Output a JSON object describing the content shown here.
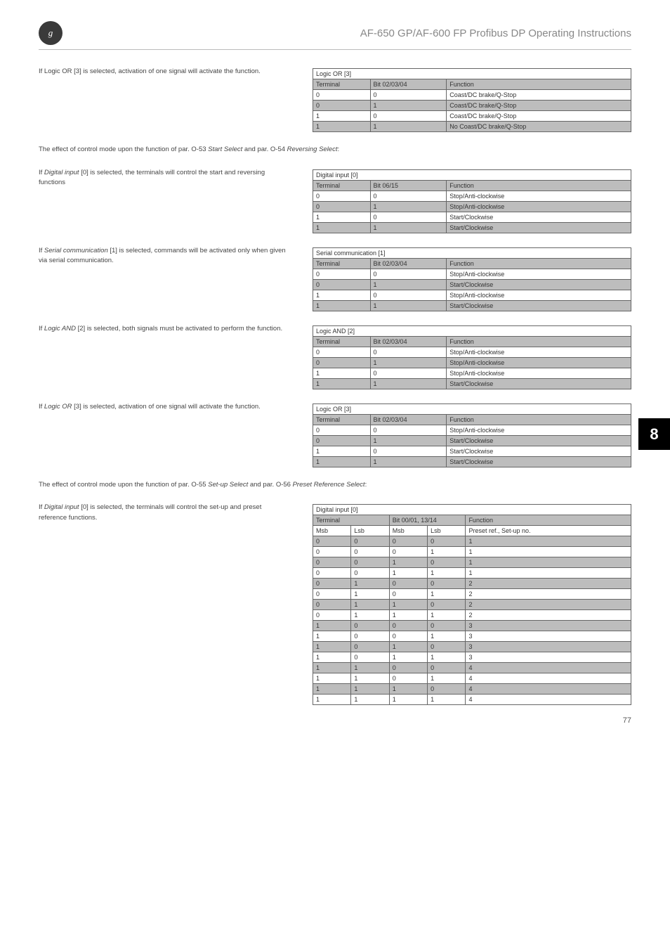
{
  "header": {
    "logo_text": "g",
    "doc_title": "AF-650 GP/AF-600 FP Profibus DP Operating Instructions"
  },
  "side_tab": "8",
  "page_number": "77",
  "sections": [
    {
      "left_html": "If Logic OR [3] is selected, activation of one signal will activate the function.",
      "table": {
        "title_span": 3,
        "title": "Logic OR [3]",
        "head": [
          "Terminal",
          "Bit 02/03/04",
          "Function"
        ],
        "rows": [
          [
            "0",
            "0",
            "Coast/DC brake/Q-Stop"
          ],
          [
            "0",
            "1",
            "Coast/DC brake/Q-Stop"
          ],
          [
            "1",
            "0",
            "Coast/DC brake/Q-Stop"
          ],
          [
            "1",
            "1",
            "No Coast/DC brake/Q-Stop"
          ]
        ]
      }
    },
    {
      "full_html": "The effect of control mode upon the function of par. O-53 <em>Start Select</em> and par. O-54 <em>Reversing Select</em>:"
    },
    {
      "left_html": "If <em>Digital input</em> [0] is selected, the terminals will control the start and reversing functions",
      "table": {
        "title_span": 3,
        "title": "Digital input [0]",
        "head": [
          "Terminal",
          "Bit 06/15",
          "Function"
        ],
        "rows": [
          [
            "0",
            "0",
            "Stop/Anti-clockwise"
          ],
          [
            "0",
            "1",
            "Stop/Anti-clockwise"
          ],
          [
            "1",
            "0",
            "Start/Clockwise"
          ],
          [
            "1",
            "1",
            "Start/Clockwise"
          ]
        ]
      }
    },
    {
      "left_html": "If <em>Serial communication</em> [1] is selected, commands will be activated only when given via serial communication.",
      "table": {
        "title_span": 3,
        "title": "Serial communication [1]",
        "head": [
          "Terminal",
          "Bit 02/03/04",
          "Function"
        ],
        "rows": [
          [
            "0",
            "0",
            "Stop/Anti-clockwise"
          ],
          [
            "0",
            "1",
            "Start/Clockwise"
          ],
          [
            "1",
            "0",
            "Stop/Anti-clockwise"
          ],
          [
            "1",
            "1",
            "Start/Clockwise"
          ]
        ]
      }
    },
    {
      "left_html": "If <em>Logic AND</em> [2] is selected, both signals must be activated to perform the function.",
      "table": {
        "title_span": 3,
        "title": "Logic AND [2]",
        "head": [
          "Terminal",
          "Bit 02/03/04",
          "Function"
        ],
        "rows": [
          [
            "0",
            "0",
            "Stop/Anti-clockwise"
          ],
          [
            "0",
            "1",
            "Stop/Anti-clockwise"
          ],
          [
            "1",
            "0",
            "Stop/Anti-clockwise"
          ],
          [
            "1",
            "1",
            "Start/Clockwise"
          ]
        ]
      }
    },
    {
      "left_html": "If <em>Logic OR</em> [3] is selected, activation of one signal will activate the function.",
      "table": {
        "title_span": 3,
        "title": "Logic OR [3]",
        "head": [
          "Terminal",
          "Bit 02/03/04",
          "Function"
        ],
        "rows": [
          [
            "0",
            "0",
            "Stop/Anti-clockwise"
          ],
          [
            "0",
            "1",
            "Start/Clockwise"
          ],
          [
            "1",
            "0",
            "Start/Clockwise"
          ],
          [
            "1",
            "1",
            "Start/Clockwise"
          ]
        ]
      }
    },
    {
      "full_html": "The effect of control mode upon the function of par. O-55 <em>Set-up Select</em> and par. O-56 <em>Preset Reference Select</em>:"
    },
    {
      "left_html": "If <em>Digital input</em> [0] is selected, the terminals will control the set-up and preset reference functions.",
      "table5": {
        "title": "Digital input [0]",
        "head_group": [
          {
            "label": "Terminal",
            "span": 2
          },
          {
            "label": "Bit 00/01, 13/14",
            "span": 2
          },
          {
            "label": "Function",
            "span": 1
          }
        ],
        "head": [
          "Msb",
          "Lsb",
          "Msb",
          "Lsb",
          "Preset ref., Set-up no."
        ],
        "rows": [
          [
            "0",
            "0",
            "0",
            "0",
            "1"
          ],
          [
            "0",
            "0",
            "0",
            "1",
            "1"
          ],
          [
            "0",
            "0",
            "1",
            "0",
            "1"
          ],
          [
            "0",
            "0",
            "1",
            "1",
            "1"
          ],
          [
            "0",
            "1",
            "0",
            "0",
            "2"
          ],
          [
            "0",
            "1",
            "0",
            "1",
            "2"
          ],
          [
            "0",
            "1",
            "1",
            "0",
            "2"
          ],
          [
            "0",
            "1",
            "1",
            "1",
            "2"
          ],
          [
            "1",
            "0",
            "0",
            "0",
            "3"
          ],
          [
            "1",
            "0",
            "0",
            "1",
            "3"
          ],
          [
            "1",
            "0",
            "1",
            "0",
            "3"
          ],
          [
            "1",
            "0",
            "1",
            "1",
            "3"
          ],
          [
            "1",
            "1",
            "0",
            "0",
            "4"
          ],
          [
            "1",
            "1",
            "0",
            "1",
            "4"
          ],
          [
            "1",
            "1",
            "1",
            "0",
            "4"
          ],
          [
            "1",
            "1",
            "1",
            "1",
            "4"
          ]
        ]
      }
    }
  ],
  "col_widths_3": [
    "18%",
    "24%",
    "58%"
  ],
  "col_widths_5": [
    "12%",
    "12%",
    "12%",
    "12%",
    "52%"
  ]
}
